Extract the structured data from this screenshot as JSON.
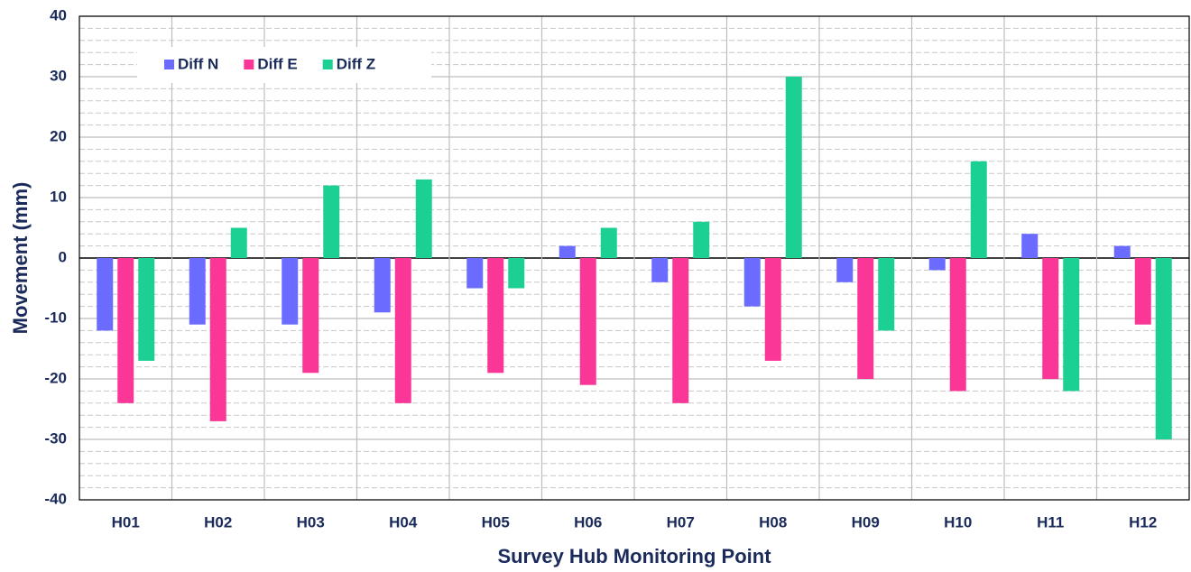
{
  "chart_data": {
    "type": "bar",
    "x_label": "Survey Hub Monitoring Point",
    "y_label": "Movement (mm)",
    "categories": [
      "H01",
      "H02",
      "H03",
      "H04",
      "H05",
      "H06",
      "H07",
      "H08",
      "H09",
      "H10",
      "H11",
      "H12"
    ],
    "series": [
      {
        "name": "Diff N",
        "color": "#6b6bff",
        "values": [
          -12,
          -11,
          -11,
          -9,
          -5,
          2,
          -4,
          -8,
          -4,
          -2,
          4,
          2
        ]
      },
      {
        "name": "Diff E",
        "color": "#fa3797",
        "values": [
          -24,
          -27,
          -19,
          -24,
          -19,
          -21,
          -24,
          -17,
          -20,
          -22,
          -20,
          -11
        ]
      },
      {
        "name": "Diff Z",
        "color": "#1ccf93",
        "values": [
          -17,
          5,
          12,
          13,
          -5,
          5,
          6,
          30,
          -12,
          16,
          -22,
          -30
        ]
      }
    ],
    "ylim": [
      -40,
      40
    ],
    "yticks": [
      -40,
      -30,
      -20,
      -10,
      0,
      10,
      20,
      30,
      40
    ],
    "grid": true,
    "minor_grid": true,
    "legend": "top-left"
  }
}
